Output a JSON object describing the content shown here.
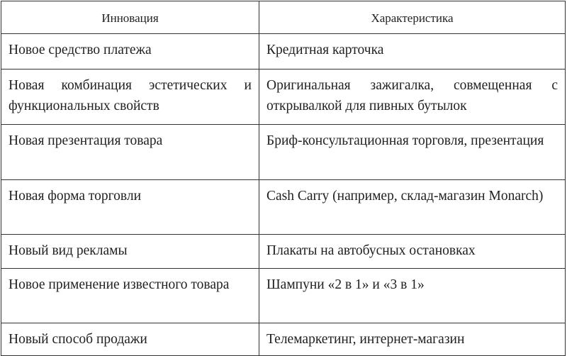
{
  "table": {
    "headers": [
      "Инновация",
      "Характеристика"
    ],
    "rows": [
      [
        "Новое средство платежа",
        "Кредитная карточка"
      ],
      [
        "Новая комбинация эстетических и функциональных свойств",
        "Оригинальная зажигалка, совмещенная с открывалкой для пивных бутылок"
      ],
      [
        "Новая презентация товара",
        "Бриф-консультационная торговля, презентация"
      ],
      [
        "Новая форма торговли",
        "Cash Carry (например, склад-магазин Monarch)"
      ],
      [
        "Новый вид рекламы",
        "Плакаты на автобусных остановках"
      ],
      [
        "Новое применение известного товара",
        "Шампуни «2 в 1» и «3 в 1»"
      ],
      [
        "Новый способ продажи",
        "Телемаркетинг, интернет-магазин"
      ]
    ]
  }
}
